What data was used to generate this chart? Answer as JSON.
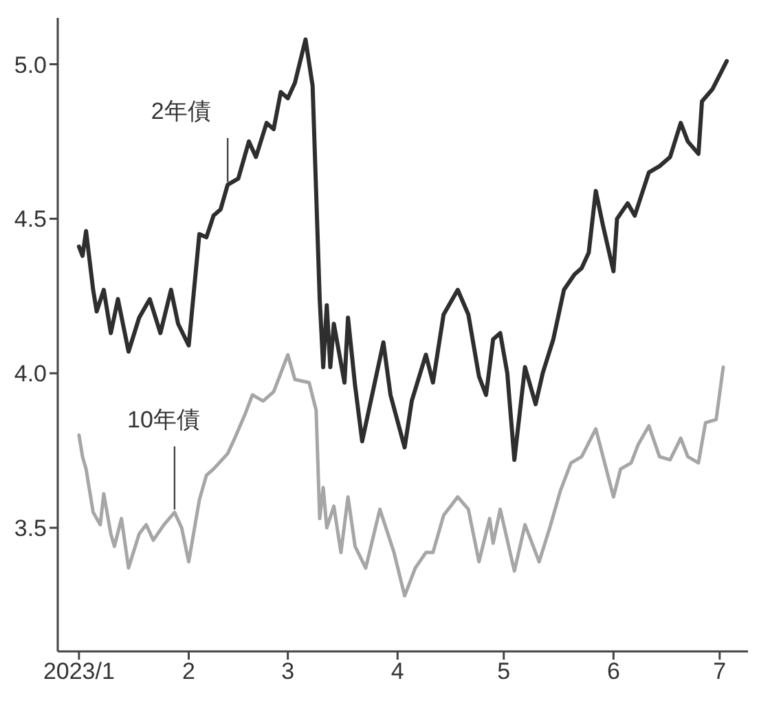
{
  "chart_data": {
    "type": "line",
    "xlim": [
      "2022-12-26",
      "2023-07-09"
    ],
    "xticks": [
      {
        "value": "2023-01-01",
        "label": "2023/1"
      },
      {
        "value": "2023-02-01",
        "label": "2"
      },
      {
        "value": "2023-03-01",
        "label": "3"
      },
      {
        "value": "2023-04-01",
        "label": "4"
      },
      {
        "value": "2023-05-01",
        "label": "5"
      },
      {
        "value": "2023-06-01",
        "label": "6"
      },
      {
        "value": "2023-07-01",
        "label": "7"
      }
    ],
    "ylim": [
      3.1,
      5.15
    ],
    "yticks": [
      3.5,
      {
        "value": 4,
        "label": "4.0"
      },
      4.5,
      {
        "value": 5,
        "label": "5.0"
      }
    ],
    "marker": "none",
    "line_style": "solid",
    "series": [
      {
        "color": "#2e2e2e",
        "x": [
          "2023-01-01",
          "2023-01-02",
          "2023-01-03",
          "2023-01-05",
          "2023-01-06",
          "2023-01-08",
          "2023-01-10",
          "2023-01-12",
          "2023-01-15",
          "2023-01-18",
          "2023-01-21",
          "2023-01-24",
          "2023-01-27",
          "2023-01-29",
          "2023-02-01",
          "2023-02-04",
          "2023-02-06",
          "2023-02-08",
          "2023-02-10",
          "2023-02-12",
          "2023-02-15",
          "2023-02-18",
          "2023-02-20",
          "2023-02-23",
          "2023-02-25",
          "2023-02-27",
          "2023-03-01",
          "2023-03-03",
          "2023-03-06",
          "2023-03-08",
          "2023-03-10",
          "2023-03-11",
          "2023-03-12",
          "2023-03-13",
          "2023-03-14",
          "2023-03-17",
          "2023-03-18",
          "2023-03-20",
          "2023-03-22",
          "2023-03-28",
          "2023-03-30",
          "2023-04-03",
          "2023-04-05",
          "2023-04-09",
          "2023-04-11",
          "2023-04-14",
          "2023-04-18",
          "2023-04-21",
          "2023-04-24",
          "2023-04-26",
          "2023-04-28",
          "2023-04-30",
          "2023-05-02",
          "2023-05-04",
          "2023-05-07",
          "2023-05-10",
          "2023-05-12",
          "2023-05-15",
          "2023-05-18",
          "2023-05-21",
          "2023-05-23",
          "2023-05-25",
          "2023-05-27",
          "2023-05-29",
          "2023-06-01",
          "2023-06-02",
          "2023-06-05",
          "2023-06-07",
          "2023-06-11",
          "2023-06-14",
          "2023-06-17",
          "2023-06-20",
          "2023-06-22",
          "2023-06-25",
          "2023-06-26",
          "2023-06-29",
          "2023-07-03"
        ],
        "values": [
          4.41,
          4.38,
          4.46,
          4.27,
          4.2,
          4.27,
          4.13,
          4.24,
          4.07,
          4.18,
          4.24,
          4.13,
          4.27,
          4.16,
          4.09,
          4.45,
          4.44,
          4.51,
          4.53,
          4.61,
          4.63,
          4.75,
          4.7,
          4.81,
          4.79,
          4.91,
          4.89,
          4.94,
          5.08,
          4.93,
          4.24,
          4.02,
          4.22,
          4.02,
          4.16,
          3.97,
          4.18,
          3.96,
          3.78,
          4.1,
          3.93,
          3.76,
          3.91,
          4.06,
          3.97,
          4.19,
          4.27,
          4.19,
          3.99,
          3.93,
          4.11,
          4.13,
          4.0,
          3.72,
          4.02,
          3.9,
          4.0,
          4.11,
          4.27,
          4.32,
          4.34,
          4.39,
          4.59,
          4.48,
          4.33,
          4.5,
          4.55,
          4.51,
          4.65,
          4.67,
          4.7,
          4.81,
          4.75,
          4.71,
          4.88,
          4.92,
          5.01
        ]
      },
      {
        "color": "#a6a6a6",
        "x": [
          "2023-01-01",
          "2023-01-02",
          "2023-01-03",
          "2023-01-05",
          "2023-01-07",
          "2023-01-08",
          "2023-01-10",
          "2023-01-11",
          "2023-01-13",
          "2023-01-15",
          "2023-01-18",
          "2023-01-20",
          "2023-01-22",
          "2023-01-25",
          "2023-01-28",
          "2023-01-30",
          "2023-02-01",
          "2023-02-04",
          "2023-02-06",
          "2023-02-08",
          "2023-02-12",
          "2023-02-14",
          "2023-02-17",
          "2023-02-19",
          "2023-02-22",
          "2023-02-25",
          "2023-03-01",
          "2023-03-03",
          "2023-03-07",
          "2023-03-09",
          "2023-03-10",
          "2023-03-11",
          "2023-03-12",
          "2023-03-14",
          "2023-03-16",
          "2023-03-18",
          "2023-03-20",
          "2023-03-23",
          "2023-03-27",
          "2023-03-31",
          "2023-04-03",
          "2023-04-06",
          "2023-04-09",
          "2023-04-11",
          "2023-04-14",
          "2023-04-18",
          "2023-04-21",
          "2023-04-24",
          "2023-04-27",
          "2023-04-28",
          "2023-04-30",
          "2023-05-04",
          "2023-05-07",
          "2023-05-11",
          "2023-05-14",
          "2023-05-17",
          "2023-05-20",
          "2023-05-23",
          "2023-05-27",
          "2023-06-01",
          "2023-06-03",
          "2023-06-06",
          "2023-06-08",
          "2023-06-11",
          "2023-06-14",
          "2023-06-17",
          "2023-06-20",
          "2023-06-22",
          "2023-06-25",
          "2023-06-27",
          "2023-06-30",
          "2023-07-02"
        ],
        "values": [
          3.8,
          3.73,
          3.69,
          3.55,
          3.51,
          3.61,
          3.48,
          3.44,
          3.53,
          3.37,
          3.48,
          3.51,
          3.46,
          3.51,
          3.55,
          3.5,
          3.39,
          3.59,
          3.67,
          3.69,
          3.74,
          3.79,
          3.87,
          3.93,
          3.91,
          3.94,
          4.06,
          3.98,
          3.97,
          3.88,
          3.53,
          3.63,
          3.5,
          3.57,
          3.42,
          3.6,
          3.44,
          3.37,
          3.56,
          3.42,
          3.28,
          3.37,
          3.42,
          3.42,
          3.54,
          3.6,
          3.56,
          3.39,
          3.53,
          3.45,
          3.56,
          3.36,
          3.51,
          3.39,
          3.5,
          3.62,
          3.71,
          3.73,
          3.82,
          3.6,
          3.69,
          3.71,
          3.77,
          3.83,
          3.73,
          3.72,
          3.79,
          3.73,
          3.71,
          3.84,
          3.85,
          4.02
        ]
      }
    ],
    "annotations": [
      {
        "text": "2年債",
        "x": "2023-02-12",
        "y": 4.61
      },
      {
        "text": "10年債",
        "x": "2023-01-28",
        "y": 3.55
      }
    ]
  }
}
